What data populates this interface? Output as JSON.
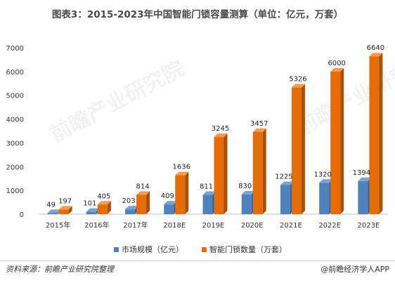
{
  "title": "图表3：2015-2023年中国智能门锁容量测算（单位：亿元，万套）",
  "source": "资料来源：前瞻产业研究院整理",
  "brand": "@前瞻经济学人APP",
  "watermark": "前瞻产业研究院",
  "colors": {
    "market": "#4f81bd",
    "volume": "#e46c0a"
  },
  "chart_data": {
    "type": "bar",
    "title": "图表3：2015-2023年中国智能门锁容量测算（单位：亿元，万套）",
    "categories": [
      "2015年",
      "2016年",
      "2017年",
      "2018E",
      "2019E",
      "2020E",
      "2021E",
      "2022E",
      "2023E"
    ],
    "series": [
      {
        "name": "市场规模（亿元）",
        "values": [
          49,
          101,
          203,
          409,
          811,
          830,
          1225,
          1320,
          1394
        ]
      },
      {
        "name": "智能门锁数量（万套）",
        "values": [
          197,
          405,
          814,
          1636,
          3245,
          3457,
          5326,
          6000,
          6640
        ]
      }
    ],
    "yticks": [
      0,
      1000,
      2000,
      3000,
      4000,
      5000,
      6000,
      7000
    ],
    "ylim": [
      0,
      7000
    ],
    "legend": "bottom",
    "grid": false
  }
}
